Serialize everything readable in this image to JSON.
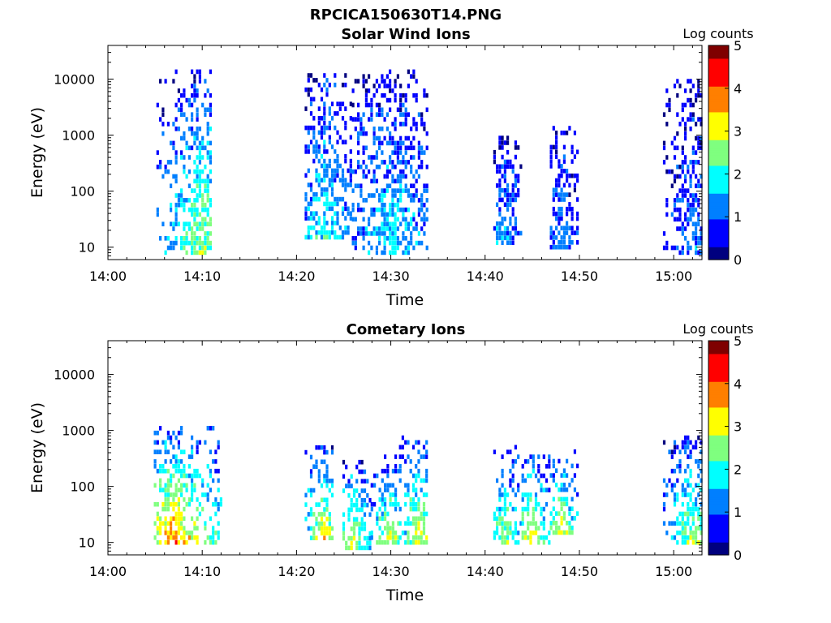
{
  "figure": {
    "title": "RPCICA150630T14.PNG"
  },
  "colors": {
    "colormap": [
      "#00007f",
      "#0000ff",
      "#007fff",
      "#00ffff",
      "#7fff7f",
      "#ffff00",
      "#ff7f00",
      "#ff0000",
      "#7f0000"
    ]
  },
  "chart_data": [
    {
      "type": "heatmap",
      "title": "Solar Wind Ions",
      "xlabel": "Time",
      "ylabel": "Energy (eV)",
      "xscale": "time",
      "yscale": "log",
      "xlim": [
        "14:00",
        "15:03"
      ],
      "ylim": [
        6,
        40000
      ],
      "xticks": [
        "14:00",
        "14:10",
        "14:20",
        "14:30",
        "14:40",
        "14:50",
        "15:00"
      ],
      "yticks": [
        "10",
        "100",
        "1000",
        "10000"
      ],
      "colorbar": {
        "label": "Log counts",
        "min": 0,
        "max": 5,
        "ticks": [
          "0",
          "1",
          "2",
          "3",
          "4",
          "5"
        ]
      },
      "bursts": [
        {
          "start": "14:05",
          "end": "14:11",
          "peak": "14:10",
          "e_low": 8,
          "e_high": 15000,
          "log_counts": 2.7
        },
        {
          "start": "14:21",
          "end": "14:26",
          "peak": "14:23",
          "e_low": 15,
          "e_high": 14000,
          "log_counts": 2.0
        },
        {
          "start": "14:26",
          "end": "14:34",
          "peak": "14:30",
          "e_low": 8,
          "e_high": 15000,
          "log_counts": 1.8
        },
        {
          "start": "14:41",
          "end": "14:44",
          "peak": "14:42",
          "e_low": 12,
          "e_high": 1300,
          "log_counts": 1.5
        },
        {
          "start": "14:47",
          "end": "14:50",
          "peak": "14:48",
          "e_low": 10,
          "e_high": 1500,
          "log_counts": 1.4
        },
        {
          "start": "14:59",
          "end": "15:03",
          "peak": "15:02",
          "e_low": 8,
          "e_high": 10000,
          "log_counts": 1.3
        }
      ]
    },
    {
      "type": "heatmap",
      "title": "Cometary Ions",
      "xlabel": "Time",
      "ylabel": "Energy (eV)",
      "xscale": "time",
      "yscale": "log",
      "xlim": [
        "14:00",
        "15:03"
      ],
      "ylim": [
        6,
        40000
      ],
      "xticks": [
        "14:00",
        "14:10",
        "14:20",
        "14:30",
        "14:40",
        "14:50",
        "15:00"
      ],
      "yticks": [
        "10",
        "100",
        "1000",
        "10000"
      ],
      "colorbar": {
        "label": "Log counts",
        "min": 0,
        "max": 5,
        "ticks": [
          "0",
          "1",
          "2",
          "3",
          "4",
          "5"
        ]
      },
      "bursts": [
        {
          "start": "14:05",
          "end": "14:12",
          "peak": "14:07",
          "e_low": 10,
          "e_high": 1200,
          "log_counts": 3.8
        },
        {
          "start": "14:21",
          "end": "14:24",
          "peak": "14:23",
          "e_low": 12,
          "e_high": 500,
          "log_counts": 3.3
        },
        {
          "start": "14:25",
          "end": "14:28",
          "peak": "14:26",
          "e_low": 8,
          "e_high": 300,
          "log_counts": 3.0
        },
        {
          "start": "14:28",
          "end": "14:31",
          "peak": "14:30",
          "e_low": 10,
          "e_high": 400,
          "log_counts": 3.1
        },
        {
          "start": "14:31",
          "end": "14:34",
          "peak": "14:33",
          "e_low": 10,
          "e_high": 800,
          "log_counts": 3.2
        },
        {
          "start": "14:41",
          "end": "14:44",
          "peak": "14:42",
          "e_low": 10,
          "e_high": 600,
          "log_counts": 2.8
        },
        {
          "start": "14:44",
          "end": "14:47",
          "peak": "14:45",
          "e_low": 10,
          "e_high": 500,
          "log_counts": 3.3
        },
        {
          "start": "14:47",
          "end": "14:50",
          "peak": "14:48",
          "e_low": 15,
          "e_high": 500,
          "log_counts": 3.0
        },
        {
          "start": "14:59",
          "end": "15:03",
          "peak": "15:02",
          "e_low": 10,
          "e_high": 800,
          "log_counts": 2.8
        }
      ]
    }
  ]
}
